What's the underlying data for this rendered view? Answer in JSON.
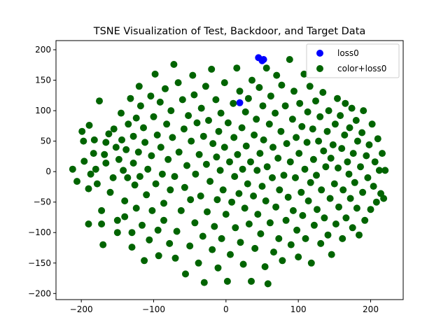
{
  "chart_data": {
    "type": "scatter",
    "title": "TSNE Visualization of Test, Backdoor, and Target Data",
    "xlabel": "",
    "ylabel": "",
    "xlim": [
      -235,
      245
    ],
    "ylim": [
      -210,
      215
    ],
    "xticks": [
      -200,
      -100,
      0,
      100,
      200
    ],
    "yticks": [
      -200,
      -150,
      -100,
      -50,
      0,
      50,
      100,
      150,
      200
    ],
    "grid": false,
    "legend_position": "top-right",
    "series": [
      {
        "name": "loss0",
        "color": "#0000ff",
        "points": [
          [
            52,
            184
          ],
          [
            19,
            113
          ],
          [
            45,
            187
          ],
          [
            50,
            182
          ]
        ]
      },
      {
        "name": "color+loss0",
        "color": "#006400",
        "points": [
          [
            -212,
            4
          ],
          [
            -206,
            -16
          ],
          [
            -199,
            66
          ],
          [
            -197,
            50
          ],
          [
            -196,
            17
          ],
          [
            -190,
            -28
          ],
          [
            -190,
            -86
          ],
          [
            -189,
            76
          ],
          [
            -187,
            -4
          ],
          [
            -183,
            30
          ],
          [
            -182,
            52
          ],
          [
            -180,
            4
          ],
          [
            -178,
            -20
          ],
          [
            -175,
            116
          ],
          [
            -172,
            -64
          ],
          [
            -172,
            -86
          ],
          [
            -170,
            -120
          ],
          [
            -168,
            28
          ],
          [
            -166,
            48
          ],
          [
            -166,
            14
          ],
          [
            -162,
            62
          ],
          [
            -160,
            -34
          ],
          [
            -156,
            -10
          ],
          [
            -155,
            70
          ],
          [
            -152,
            40
          ],
          [
            -150,
            -80
          ],
          [
            -150,
            -100
          ],
          [
            -148,
            20
          ],
          [
            -145,
            96
          ],
          [
            -144,
            52
          ],
          [
            -142,
            2
          ],
          [
            -140,
            -48
          ],
          [
            -140,
            -74
          ],
          [
            -138,
            36
          ],
          [
            -136,
            -10
          ],
          [
            -135,
            78
          ],
          [
            -132,
            120
          ],
          [
            -130,
            -100
          ],
          [
            -130,
            -124
          ],
          [
            -128,
            58
          ],
          [
            -128,
            14
          ],
          [
            -126,
            -22
          ],
          [
            -124,
            88
          ],
          [
            -124,
            -60
          ],
          [
            -121,
            32
          ],
          [
            -120,
            140
          ],
          [
            -119,
            -8
          ],
          [
            -118,
            108
          ],
          [
            -116,
            -88
          ],
          [
            -114,
            72
          ],
          [
            -113,
            -146
          ],
          [
            -112,
            48
          ],
          [
            -110,
            -38
          ],
          [
            -108,
            4
          ],
          [
            -106,
            -112
          ],
          [
            -104,
            124
          ],
          [
            -103,
            26
          ],
          [
            -102,
            -64
          ],
          [
            -100,
            90
          ],
          [
            -98,
            160
          ],
          [
            -97,
            -20
          ],
          [
            -95,
            60
          ],
          [
            -94,
            -96
          ],
          [
            -93,
            -138
          ],
          [
            -91,
            114
          ],
          [
            -90,
            40
          ],
          [
            -88,
            -4
          ],
          [
            -86,
            -52
          ],
          [
            -86,
            -80
          ],
          [
            -84,
            136
          ],
          [
            -82,
            78
          ],
          [
            -80,
            20
          ],
          [
            -78,
            -118
          ],
          [
            -77,
            -30
          ],
          [
            -76,
            100
          ],
          [
            -74,
            56
          ],
          [
            -72,
            176
          ],
          [
            -71,
            -8
          ],
          [
            -70,
            -142
          ],
          [
            -68,
            -98
          ],
          [
            -66,
            146
          ],
          [
            -65,
            32
          ],
          [
            -62,
            -64
          ],
          [
            -60,
            118
          ],
          [
            -58,
            70
          ],
          [
            -57,
            -26
          ],
          [
            -56,
            -168
          ],
          [
            -54,
            10
          ],
          [
            -52,
            92
          ],
          [
            -50,
            -122
          ],
          [
            -49,
            -46
          ],
          [
            -48,
            50
          ],
          [
            -46,
            158
          ],
          [
            -44,
            126
          ],
          [
            -43,
            -84
          ],
          [
            -42,
            -4
          ],
          [
            -40,
            80
          ],
          [
            -38,
            -150
          ],
          [
            -37,
            28
          ],
          [
            -35,
            -40
          ],
          [
            -34,
            104
          ],
          [
            -32,
            -106
          ],
          [
            -31,
            58
          ],
          [
            -30,
            -182
          ],
          [
            -28,
            140
          ],
          [
            -27,
            12
          ],
          [
            -26,
            -66
          ],
          [
            -24,
            84
          ],
          [
            -22,
            -16
          ],
          [
            -20,
            168
          ],
          [
            -19,
            -128
          ],
          [
            -18,
            46
          ],
          [
            -16,
            -90
          ],
          [
            -14,
            118
          ],
          [
            -13,
            24
          ],
          [
            -12,
            -46
          ],
          [
            -11,
            -158
          ],
          [
            -10,
            66
          ],
          [
            -8,
            2
          ],
          [
            -7,
            96
          ],
          [
            -6,
            -110
          ],
          [
            -4,
            -30
          ],
          [
            -2,
            146
          ],
          [
            -2,
            40
          ],
          [
            0,
            -70
          ],
          [
            2,
            -180
          ],
          [
            3,
            80
          ],
          [
            5,
            16
          ],
          [
            6,
            -136
          ],
          [
            8,
            -50
          ],
          [
            10,
            112
          ],
          [
            11,
            56
          ],
          [
            12,
            -8
          ],
          [
            13,
            -92
          ],
          [
            15,
            170
          ],
          [
            16,
            28
          ],
          [
            18,
            -36
          ],
          [
            19,
            132
          ],
          [
            20,
            -116
          ],
          [
            22,
            72
          ],
          [
            23,
            4
          ],
          [
            24,
            -152
          ],
          [
            26,
            -60
          ],
          [
            27,
            98
          ],
          [
            28,
            42
          ],
          [
            30,
            -20
          ],
          [
            31,
            120
          ],
          [
            32,
            -86
          ],
          [
            34,
            16
          ],
          [
            35,
            -180
          ],
          [
            36,
            150
          ],
          [
            38,
            -40
          ],
          [
            39,
            60
          ],
          [
            40,
            -126
          ],
          [
            42,
            86
          ],
          [
            43,
            2
          ],
          [
            44,
            -70
          ],
          [
            46,
            138
          ],
          [
            47,
            30
          ],
          [
            48,
            -102
          ],
          [
            50,
            -24
          ],
          [
            51,
            108
          ],
          [
            52,
            52
          ],
          [
            54,
            -156
          ],
          [
            55,
            -48
          ],
          [
            56,
            170
          ],
          [
            57,
            8
          ],
          [
            58,
            -184
          ],
          [
            60,
            78
          ],
          [
            61,
            -84
          ],
          [
            62,
            124
          ],
          [
            64,
            -10
          ],
          [
            65,
            40
          ],
          [
            66,
            -132
          ],
          [
            68,
            96
          ],
          [
            69,
            -58
          ],
          [
            70,
            158
          ],
          [
            72,
            22
          ],
          [
            73,
            -110
          ],
          [
            74,
            -30
          ],
          [
            76,
            66
          ],
          [
            77,
            142
          ],
          [
            78,
            -146
          ],
          [
            80,
            -6
          ],
          [
            82,
            108
          ],
          [
            83,
            -80
          ],
          [
            84,
            46
          ],
          [
            86,
            -42
          ],
          [
            88,
            184
          ],
          [
            89,
            16
          ],
          [
            90,
            -120
          ],
          [
            92,
            86
          ],
          [
            93,
            -64
          ],
          [
            94,
            132
          ],
          [
            96,
            -10
          ],
          [
            97,
            56
          ],
          [
            98,
            -96
          ],
          [
            100,
            -140
          ],
          [
            101,
            30
          ],
          [
            102,
            112
          ],
          [
            104,
            -34
          ],
          [
            105,
            74
          ],
          [
            106,
            -72
          ],
          [
            108,
            160
          ],
          [
            109,
            4
          ],
          [
            110,
            -110
          ],
          [
            112,
            48
          ],
          [
            113,
            98
          ],
          [
            114,
            -48
          ],
          [
            116,
            140
          ],
          [
            117,
            -18
          ],
          [
            118,
            -150
          ],
          [
            120,
            70
          ],
          [
            121,
            20
          ],
          [
            122,
            -88
          ],
          [
            124,
            116
          ],
          [
            125,
            -6
          ],
          [
            126,
            -62
          ],
          [
            128,
            50
          ],
          [
            130,
            90
          ],
          [
            131,
            -118
          ],
          [
            132,
            -30
          ],
          [
            134,
            130
          ],
          [
            135,
            34
          ],
          [
            136,
            -76
          ],
          [
            138,
            8
          ],
          [
            140,
            66
          ],
          [
            141,
            -104
          ],
          [
            142,
            100
          ],
          [
            144,
            -44
          ],
          [
            145,
            22
          ],
          [
            146,
            -136
          ],
          [
            148,
            44
          ],
          [
            150,
            -20
          ],
          [
            151,
            78
          ],
          [
            152,
            -86
          ],
          [
            154,
            120
          ],
          [
            155,
            6
          ],
          [
            156,
            -58
          ],
          [
            158,
            92
          ],
          [
            160,
            38
          ],
          [
            161,
            -110
          ],
          [
            162,
            -30
          ],
          [
            164,
            60
          ],
          [
            165,
            112
          ],
          [
            166,
            -76
          ],
          [
            168,
            16
          ],
          [
            170,
            -4
          ],
          [
            171,
            72
          ],
          [
            172,
            -44
          ],
          [
            174,
            104
          ],
          [
            175,
            -92
          ],
          [
            176,
            30
          ],
          [
            178,
            -18
          ],
          [
            180,
            84
          ],
          [
            181,
            -60
          ],
          [
            182,
            50
          ],
          [
            184,
            -104
          ],
          [
            186,
            8
          ],
          [
            188,
            64
          ],
          [
            189,
            -34
          ],
          [
            190,
            100
          ],
          [
            192,
            -80
          ],
          [
            194,
            26
          ],
          [
            196,
            -10
          ],
          [
            198,
            44
          ],
          [
            200,
            -62
          ],
          [
            202,
            78
          ],
          [
            204,
            -24
          ],
          [
            206,
            16
          ],
          [
            208,
            -50
          ],
          [
            210,
            54
          ],
          [
            212,
            2
          ],
          [
            214,
            -36
          ],
          [
            216,
            30
          ],
          [
            218,
            -44
          ],
          [
            220,
            2
          ]
        ]
      }
    ]
  }
}
